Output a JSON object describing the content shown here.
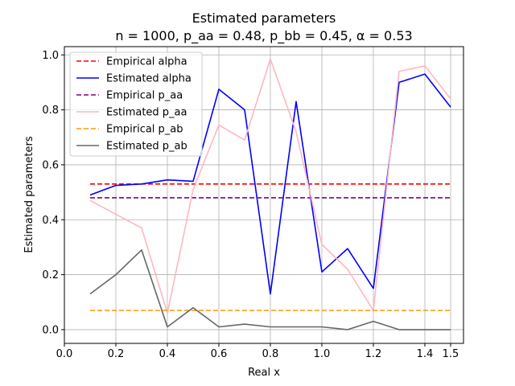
{
  "chart_data": {
    "type": "line",
    "title": "Estimated parameters",
    "subtitle": "n = 1000, p_aa = 0.48, p_bb = 0.45, α = 0.53",
    "xlabel": "Real x",
    "ylabel": "Estimated parameters",
    "xlim": [
      0.0,
      1.55
    ],
    "ylim": [
      -0.05,
      1.03
    ],
    "xticks": [
      0.0,
      0.2,
      0.4,
      0.6,
      0.8,
      1.0,
      1.2,
      1.4,
      1.5
    ],
    "xtick_labels": [
      "0.0",
      "0.2",
      "0.4",
      "0.6",
      "0.8",
      "1.0",
      "1.2",
      "1.4",
      "1.5"
    ],
    "yticks": [
      0.0,
      0.2,
      0.4,
      0.6,
      0.8,
      1.0
    ],
    "ytick_labels": [
      "0.0",
      "0.2",
      "0.4",
      "0.6",
      "0.8",
      "1.0"
    ],
    "grid": true,
    "legend_position": "upper-left",
    "x": [
      0.1,
      0.2,
      0.3,
      0.4,
      0.5,
      0.6,
      0.7,
      0.8,
      0.9,
      1.0,
      1.1,
      1.2,
      1.3,
      1.4,
      1.5
    ],
    "series": [
      {
        "name": "Empirical alpha",
        "color": "#ff0000",
        "dashed": true,
        "values": [
          0.53,
          0.53,
          0.53,
          0.53,
          0.53,
          0.53,
          0.53,
          0.53,
          0.53,
          0.53,
          0.53,
          0.53,
          0.53,
          0.53,
          0.53
        ]
      },
      {
        "name": "Estimated alpha",
        "color": "#0000ff",
        "dashed": false,
        "values": [
          0.49,
          0.525,
          0.53,
          0.545,
          0.54,
          0.875,
          0.8,
          0.13,
          0.83,
          0.21,
          0.295,
          0.15,
          0.9,
          0.93,
          0.81
        ]
      },
      {
        "name": "Empirical p_aa",
        "color": "#800080",
        "dashed": true,
        "values": [
          0.48,
          0.48,
          0.48,
          0.48,
          0.48,
          0.48,
          0.48,
          0.48,
          0.48,
          0.48,
          0.48,
          0.48,
          0.48,
          0.48,
          0.48
        ]
      },
      {
        "name": "Estimated p_aa",
        "color": "#ffb6c1",
        "dashed": false,
        "values": [
          0.47,
          0.42,
          0.37,
          0.06,
          0.51,
          0.745,
          0.69,
          0.985,
          0.72,
          0.31,
          0.22,
          0.07,
          0.94,
          0.96,
          0.84
        ]
      },
      {
        "name": "Empirical p_ab",
        "color": "#ff9900",
        "dashed": true,
        "values": [
          0.07,
          0.07,
          0.07,
          0.07,
          0.07,
          0.07,
          0.07,
          0.07,
          0.07,
          0.07,
          0.07,
          0.07,
          0.07,
          0.07,
          0.07
        ]
      },
      {
        "name": "Estimated p_ab",
        "color": "#666666",
        "dashed": false,
        "values": [
          0.13,
          0.2,
          0.29,
          0.01,
          0.08,
          0.01,
          0.02,
          0.01,
          0.01,
          0.01,
          0.0,
          0.03,
          0.0,
          0.0,
          0.0
        ]
      }
    ]
  }
}
